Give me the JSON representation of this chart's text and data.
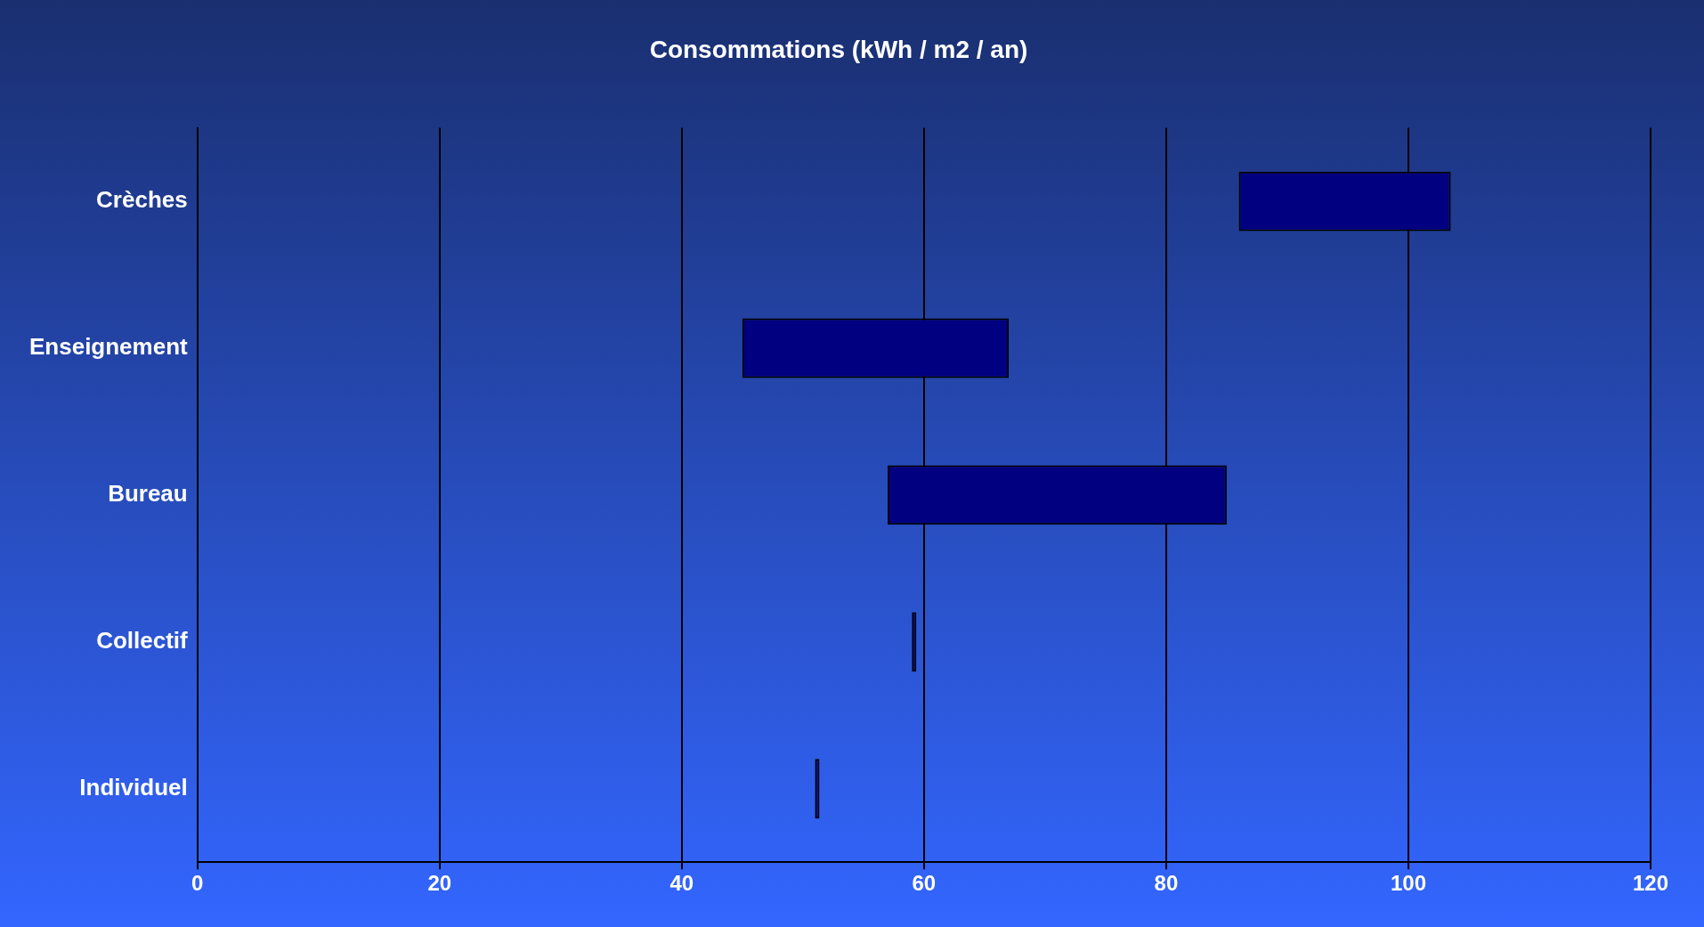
{
  "chart_data": {
    "type": "bar",
    "title": "Consommations (kWh / m2 / an)",
    "orientation": "horizontal",
    "categories": [
      "Crèches",
      "Enseignement",
      "Bureau",
      "Collectif",
      "Individuel"
    ],
    "base": [
      86,
      45,
      57,
      59,
      51
    ],
    "values": [
      17.5,
      22,
      28,
      0,
      0
    ],
    "color": "#000080",
    "xlim": [
      0,
      120
    ],
    "xticks": [
      0,
      20,
      40,
      60,
      80,
      100,
      120
    ],
    "grid": "x"
  }
}
